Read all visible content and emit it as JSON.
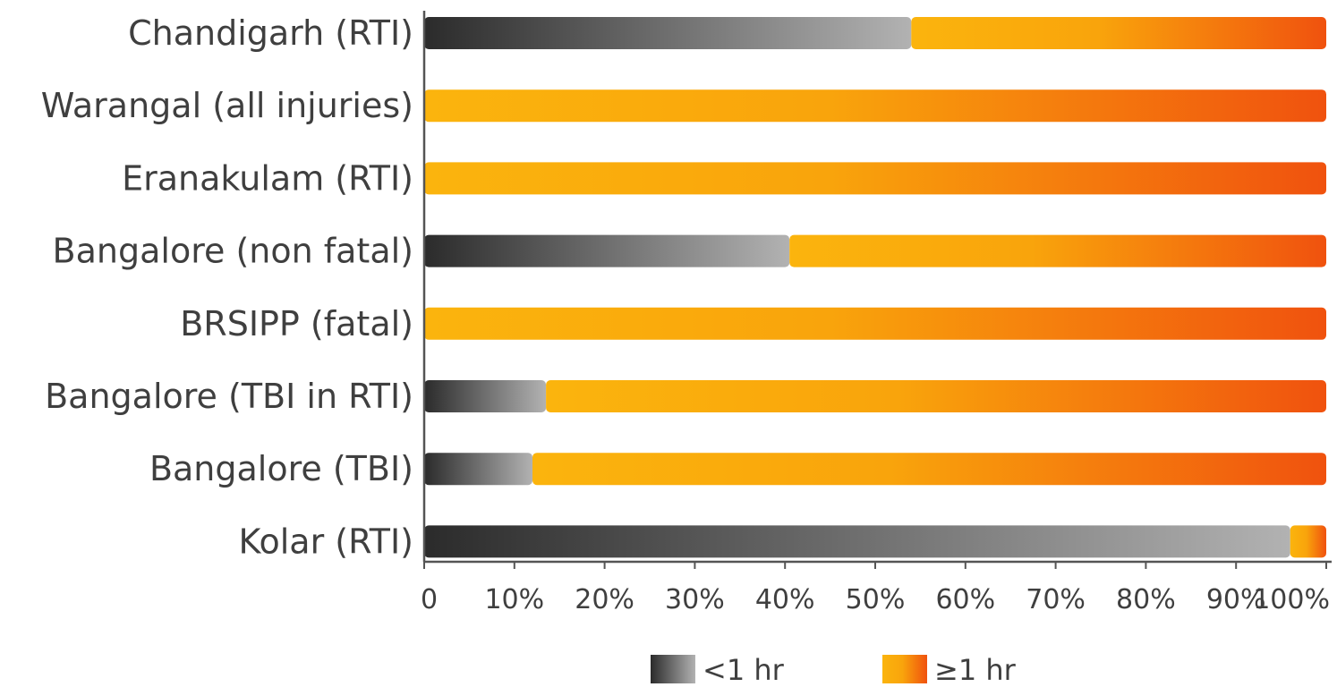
{
  "chart_data": {
    "type": "bar",
    "orientation": "horizontal",
    "stacked": true,
    "categories": [
      "Chandigarh (RTI)",
      "Warangal (all injuries)",
      "Eranakulam (RTI)",
      "Bangalore (non fatal)",
      "BRSIPP (fatal)",
      "Bangalore (TBI in RTI)",
      "Bangalore (TBI)",
      "Kolar (RTI)"
    ],
    "series": [
      {
        "name": "<1 hr",
        "values": [
          54,
          0,
          0,
          40.5,
          0,
          13.5,
          12,
          96
        ]
      },
      {
        "name": "≥1 hr",
        "values": [
          46,
          100,
          100,
          59.5,
          100,
          86.5,
          88,
          4
        ]
      }
    ],
    "xlim": [
      0,
      100
    ],
    "x_ticks": [
      "0",
      "10%",
      "20%",
      "30%",
      "40%",
      "50%",
      "60%",
      "70%",
      "80%",
      "90%",
      "100%"
    ],
    "grid": false,
    "legend_position": "bottom-center",
    "colors": {
      "lt1_start": "#2b2b2b",
      "lt1_end": "#b2b2b2",
      "ge1_start": "#fbb40d",
      "ge1_end": "#f0520e",
      "axis": "#555555",
      "text": "#3f3f3f"
    }
  }
}
